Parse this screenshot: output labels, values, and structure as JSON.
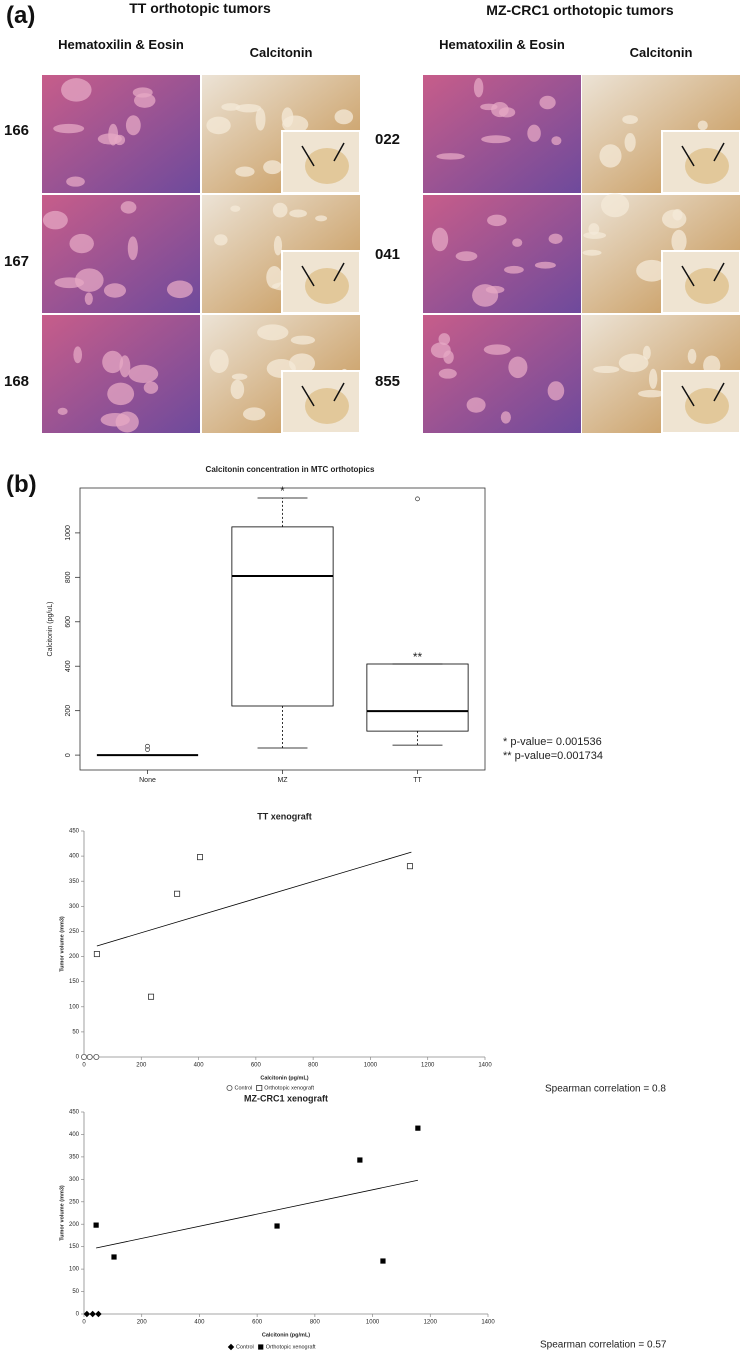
{
  "panel_a": {
    "label": "(a)",
    "groups": [
      {
        "title": "TT orthotopic tumors",
        "columns": [
          "Hematoxilin & Eosin",
          "Calcitonin"
        ],
        "rows": [
          "166",
          "167",
          "168"
        ]
      },
      {
        "title": "MZ-CRC1 orthotopic tumors",
        "columns": [
          "Hematoxilin & Eosin",
          "Calcitonin"
        ],
        "rows": [
          "022",
          "041",
          "855"
        ]
      }
    ]
  },
  "panel_b_label": "(b)",
  "chart_data": [
    {
      "type": "box",
      "title": "Calcitonin concentration in MTC orthotopics",
      "ylabel": "Calcitonin (pg/uL)",
      "categories": [
        "None",
        "MZ",
        "TT"
      ],
      "boxes": [
        {
          "min": 0,
          "q1": 0,
          "median": 0,
          "q3": 0,
          "max": 0,
          "outliers": [
            40,
            25
          ]
        },
        {
          "min": 32,
          "q1": 221,
          "median": 806,
          "q3": 1027,
          "max": 1157,
          "outliers": [],
          "label": "*"
        },
        {
          "min": 45,
          "q1": 108,
          "median": 198,
          "q3": 410,
          "max": 410,
          "outliers": [
            1153
          ],
          "label": "**"
        }
      ],
      "ylim": [
        -67,
        1202
      ],
      "yticks": [
        0,
        200,
        400,
        600,
        800,
        1000
      ],
      "notes": [
        "* p-value= 0.001536",
        "** p-value=0.001734"
      ]
    },
    {
      "type": "scatter",
      "title": "TT xenograft",
      "xlabel": "Calcitonin (pg/mL)",
      "ylabel": "Tumor volume (mm3)",
      "xlim": [
        0,
        1400
      ],
      "ylim": [
        0,
        450
      ],
      "xticks": [
        0,
        200,
        400,
        600,
        800,
        1000,
        1200,
        1400
      ],
      "yticks": [
        0,
        50,
        100,
        150,
        200,
        250,
        300,
        350,
        400,
        450
      ],
      "series": [
        {
          "name": "Control",
          "color": "#555555",
          "marker": "circle-open",
          "x": [
            0,
            20,
            43
          ],
          "values": [
            0,
            0,
            0
          ]
        },
        {
          "name": "Orthotopic xenograft",
          "color": "#333333",
          "marker": "square-open",
          "x": [
            45,
            234,
            325,
            405,
            1138
          ],
          "values": [
            205,
            120,
            325,
            398,
            380
          ]
        }
      ],
      "trendline": {
        "color": "#000000",
        "x": [
          45,
          1143
        ],
        "values": [
          221,
          408
        ]
      },
      "annotation": "Spearman correlation = 0.8"
    },
    {
      "type": "scatter",
      "title": "MZ-CRC1 xenograft",
      "xlabel": "Calcitonin (pg/mL)",
      "ylabel": "Tumor volume (mm3)",
      "xlim": [
        0,
        1400
      ],
      "ylim": [
        0,
        450
      ],
      "xticks": [
        0,
        200,
        400,
        600,
        800,
        1000,
        1200,
        1400
      ],
      "yticks": [
        0,
        50,
        100,
        150,
        200,
        250,
        300,
        350,
        400,
        450
      ],
      "series": [
        {
          "name": "Control",
          "color": "#000000",
          "marker": "diamond",
          "x": [
            10,
            30,
            50
          ],
          "values": [
            0,
            0,
            0
          ]
        },
        {
          "name": "Orthotopic xenograft",
          "color": "#000000",
          "marker": "square",
          "x": [
            42,
            104,
            669,
            956,
            1036,
            1157
          ],
          "values": [
            198,
            127,
            196,
            343,
            118,
            414
          ]
        }
      ],
      "trendline": {
        "color": "#000000",
        "x": [
          42,
          1157
        ],
        "values": [
          147,
          298
        ]
      },
      "annotation": "Spearman correlation = 0.57"
    }
  ]
}
